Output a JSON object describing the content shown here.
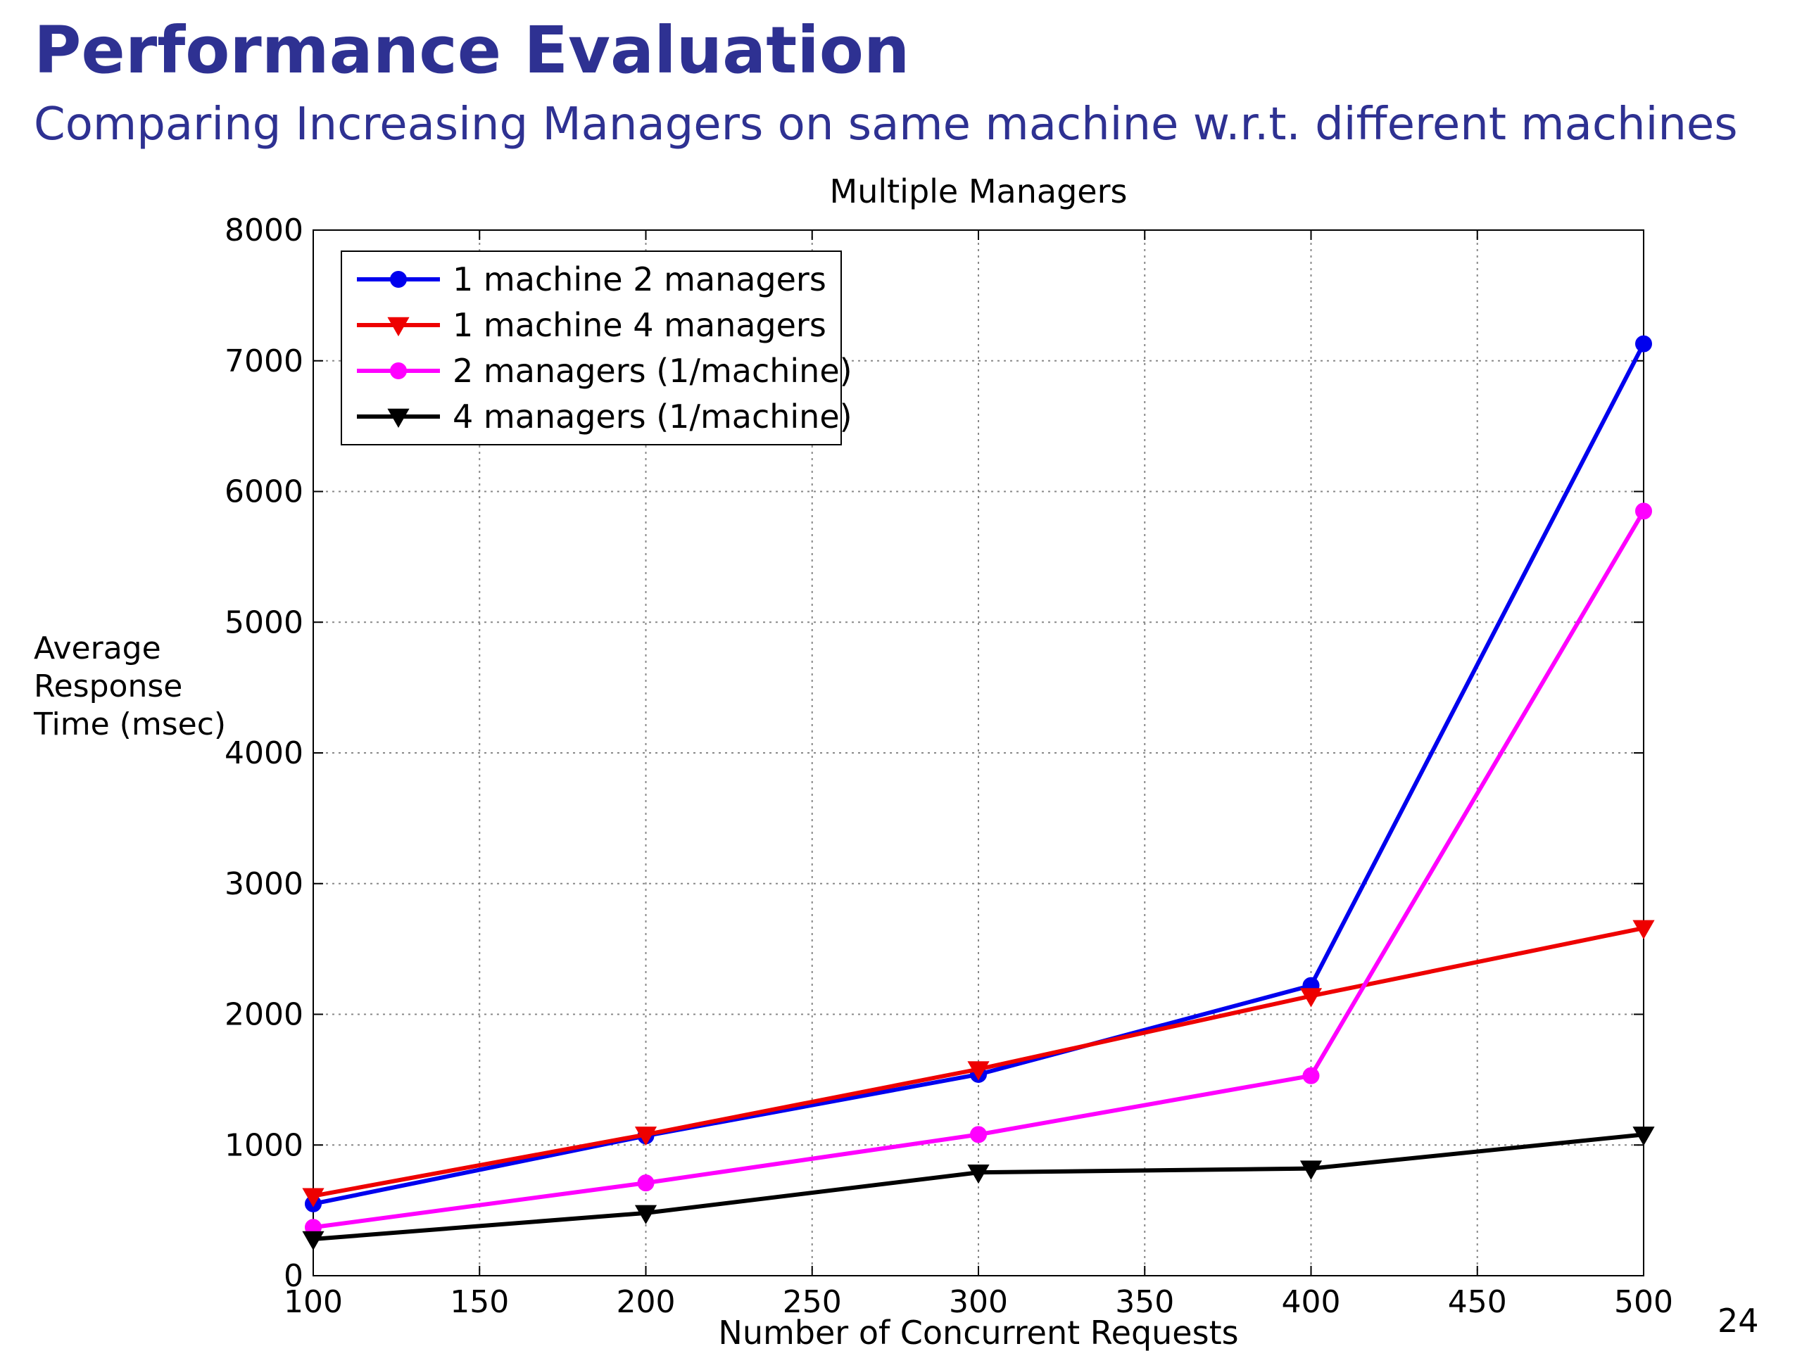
{
  "slide": {
    "title": "Performance Evaluation",
    "subtitle": "Comparing Increasing Managers on same machine w.r.t. different machines",
    "page_number": "24"
  },
  "chart_data": {
    "type": "line",
    "title": "Multiple Managers",
    "xlabel": "Number of Concurrent Requests",
    "ylabel": "Average\nResponse\nTime (msec)",
    "x": [
      100,
      200,
      300,
      400,
      500
    ],
    "xlim": [
      100,
      500
    ],
    "ylim": [
      0,
      8000
    ],
    "xticks": [
      100,
      150,
      200,
      250,
      300,
      350,
      400,
      450,
      500
    ],
    "yticks": [
      0,
      1000,
      2000,
      3000,
      4000,
      5000,
      6000,
      7000,
      8000
    ],
    "grid": true,
    "legend_position": "top-left",
    "series": [
      {
        "name": "1 machine 2 managers",
        "color": "#0000ee",
        "marker": "circle",
        "values": [
          550,
          1070,
          1540,
          2220,
          7130
        ]
      },
      {
        "name": "1 machine 4 managers",
        "color": "#ee0000",
        "marker": "triangle-down",
        "values": [
          610,
          1080,
          1580,
          2140,
          2660
        ]
      },
      {
        "name": "2 managers (1/machine)",
        "color": "#ff00ff",
        "marker": "circle",
        "values": [
          370,
          710,
          1080,
          1530,
          5850
        ]
      },
      {
        "name": "4 managers (1/machine)",
        "color": "#000000",
        "marker": "triangle-down",
        "values": [
          280,
          480,
          790,
          820,
          1080
        ]
      }
    ]
  }
}
